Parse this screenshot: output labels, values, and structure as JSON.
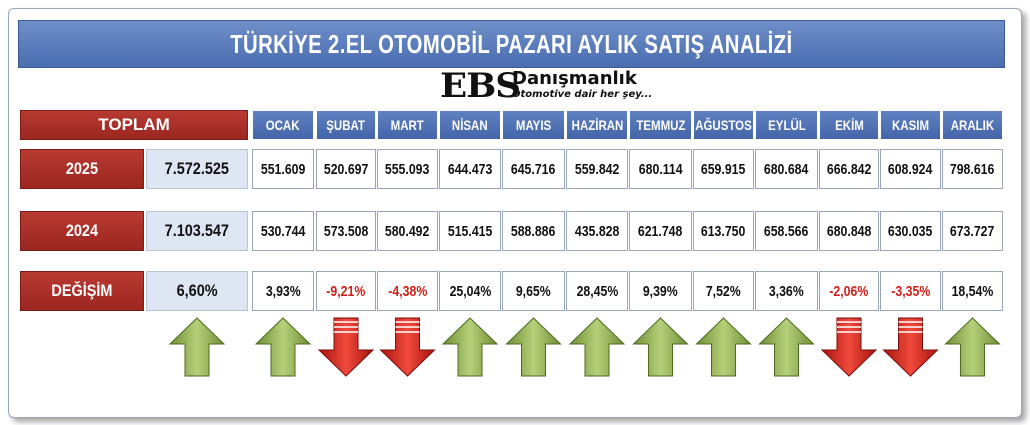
{
  "title": "TÜRKİYE 2.EL OTOMOBİL PAZARI AYLIK SATIŞ ANALİZİ",
  "logo": {
    "mark": "EBS",
    "name": "Danışmanlık",
    "tagline": "Otomotive dair her şey..."
  },
  "colors": {
    "header_blue": "#4a6db0",
    "label_red": "#9c2620",
    "up_arrow": "#8fb04a",
    "down_arrow": "#d0201a",
    "negative_text": "#d0201a"
  },
  "chart_data": {
    "type": "table",
    "title": "TÜRKİYE 2.EL OTOMOBİL PAZARI AYLIK SATIŞ ANALİZİ",
    "total_label": "TOPLAM",
    "months": [
      "OCAK",
      "ŞUBAT",
      "MART",
      "NİSAN",
      "MAYIS",
      "HAZİRAN",
      "TEMMUZ",
      "AĞUSTOS",
      "EYLÜL",
      "EKİM",
      "KASIM",
      "ARALIK"
    ],
    "rows": [
      {
        "label": "2025",
        "total": "7.572.525",
        "values": [
          "551.609",
          "520.697",
          "555.093",
          "644.473",
          "645.716",
          "559.842",
          "680.114",
          "659.915",
          "680.684",
          "666.842",
          "608.924",
          "798.616"
        ]
      },
      {
        "label": "2024",
        "total": "7.103.547",
        "values": [
          "530.744",
          "573.508",
          "580.492",
          "515.415",
          "588.886",
          "435.828",
          "621.748",
          "613.750",
          "658.566",
          "680.848",
          "630.035",
          "673.727"
        ]
      },
      {
        "label": "DEĞİŞİM",
        "total": "6,60%",
        "values": [
          "3,93%",
          "-9,21%",
          "-4,38%",
          "25,04%",
          "9,65%",
          "28,45%",
          "9,39%",
          "7,52%",
          "3,36%",
          "-2,06%",
          "-3,35%",
          "18,54%"
        ]
      }
    ],
    "change_percent": [
      6.6,
      3.93,
      -9.21,
      -4.38,
      25.04,
      9.65,
      28.45,
      9.39,
      7.52,
      3.36,
      -2.06,
      -3.35,
      18.54
    ],
    "arrow_icons": [
      "up-arrow-icon",
      "up-arrow-icon",
      "down-arrow-icon",
      "down-arrow-icon",
      "up-arrow-icon",
      "up-arrow-icon",
      "up-arrow-icon",
      "up-arrow-icon",
      "up-arrow-icon",
      "up-arrow-icon",
      "down-arrow-icon",
      "down-arrow-icon",
      "up-arrow-icon"
    ]
  }
}
